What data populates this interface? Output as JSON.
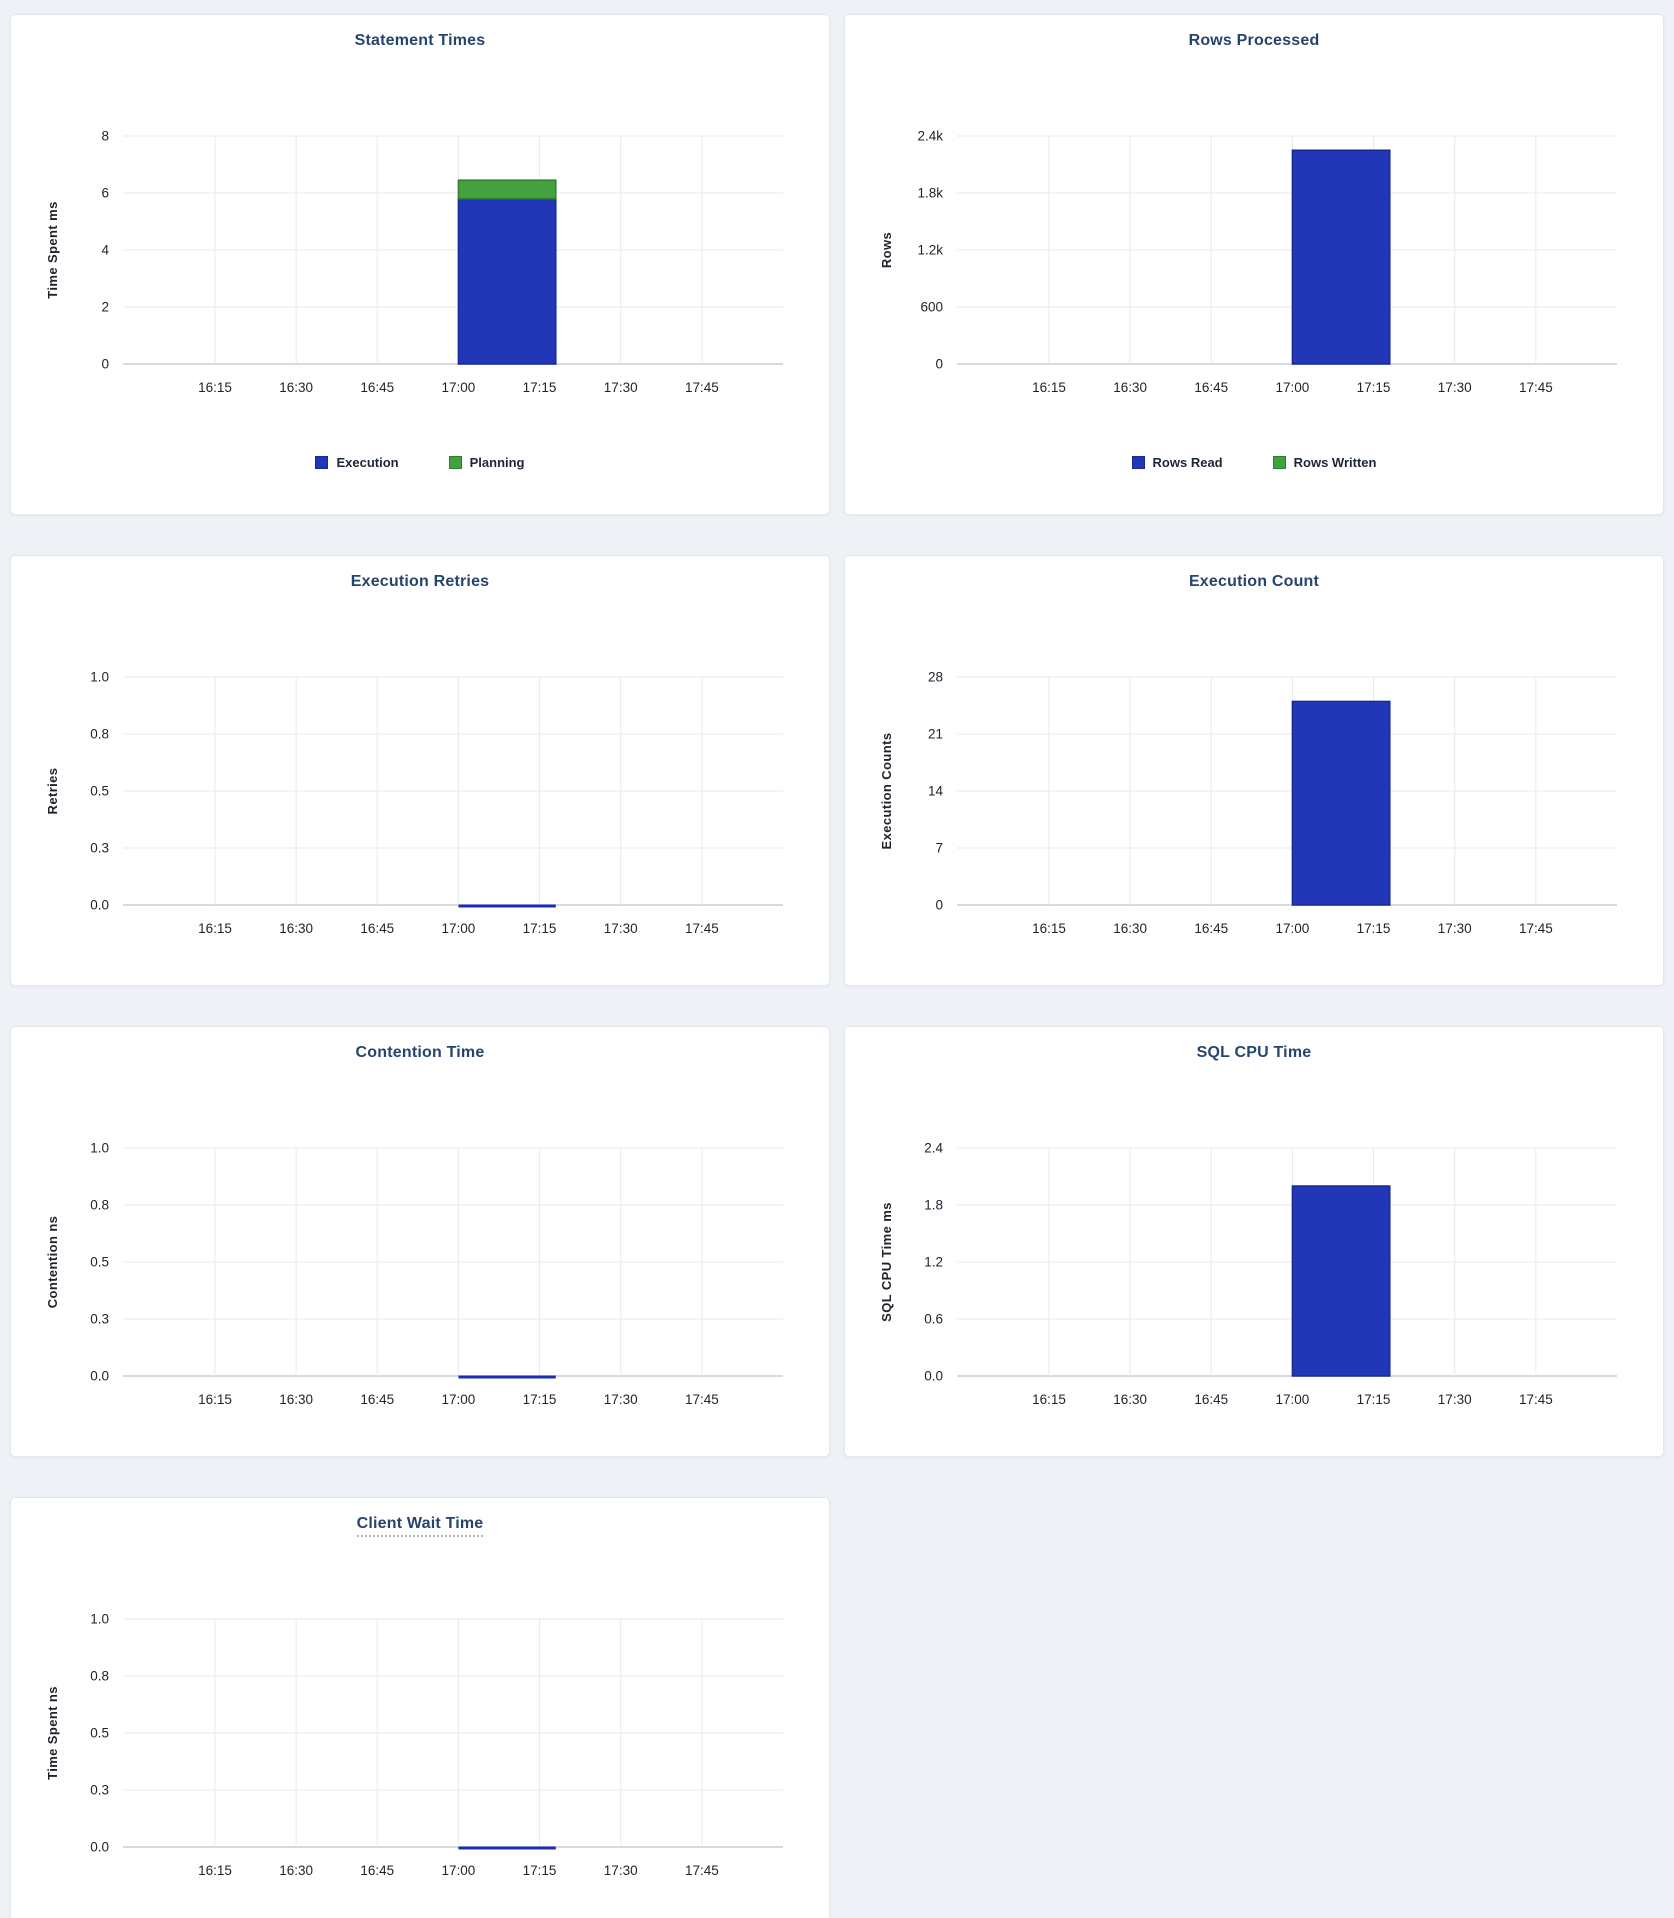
{
  "page": {
    "background": "#eef2f7"
  },
  "colors": {
    "bar_blue": "#2137b8",
    "bar_blue_stroke": "#172a96",
    "bar_green": "#43a13e",
    "bar_green_stroke": "#2e7d31",
    "title": "#26456e",
    "grid": "#e8eaed",
    "axis_line": "#c9ced4",
    "text": "#1d222b",
    "flat_line": "#1b2bb4"
  },
  "x_axis": {
    "tick_labels": [
      "16:15",
      "16:30",
      "16:45",
      "17:00",
      "17:15",
      "17:30",
      "17:45"
    ],
    "tick_minutes": [
      975,
      990,
      1005,
      1020,
      1035,
      1050,
      1065
    ],
    "domain_minutes": [
      958,
      1080
    ],
    "bar_minutes": [
      1020,
      1038
    ]
  },
  "chart_data": [
    {
      "type": "bar",
      "title": "Statement Times",
      "ylabel": "Time Spent ms",
      "y_tick_labels": [
        "0",
        "2",
        "4",
        "6",
        "8"
      ],
      "y_max": 8,
      "ylim": [
        0,
        8
      ],
      "x": [
        "17:00"
      ],
      "segments": [
        {
          "name": "Execution",
          "from": 0,
          "to": 5.8,
          "color": "blue"
        },
        {
          "name": "Planning",
          "from": 5.8,
          "to": 6.45,
          "color": "green"
        }
      ],
      "legend": [
        {
          "label": "Execution",
          "color": "blue"
        },
        {
          "label": "Planning",
          "color": "green"
        }
      ],
      "legend_position": "bottom",
      "grid": true
    },
    {
      "type": "bar",
      "title": "Rows Processed",
      "ylabel": "Rows",
      "y_tick_labels": [
        "0",
        "600",
        "1.2k",
        "1.8k",
        "2.4k"
      ],
      "y_max": 2400,
      "ylim": [
        0,
        2400
      ],
      "x": [
        "17:00"
      ],
      "segments": [
        {
          "name": "Rows Read",
          "from": 0,
          "to": 2250,
          "color": "blue"
        },
        {
          "name": "Rows Written",
          "from": 2250,
          "to": 2250,
          "color": "green"
        }
      ],
      "legend": [
        {
          "label": "Rows Read",
          "color": "blue"
        },
        {
          "label": "Rows Written",
          "color": "green"
        }
      ],
      "legend_position": "bottom",
      "grid": true
    },
    {
      "type": "bar",
      "title": "Execution Retries",
      "ylabel": "Retries",
      "y_tick_labels": [
        "0.0",
        "0.3",
        "0.5",
        "0.8",
        "1.0"
      ],
      "y_max": 1,
      "ylim": [
        0,
        1
      ],
      "x": [
        "17:00"
      ],
      "segments": [],
      "flat_line": {
        "name": "Retries",
        "value": 0
      },
      "grid": true
    },
    {
      "type": "bar",
      "title": "Execution Count",
      "ylabel": "Execution Counts",
      "y_tick_labels": [
        "0",
        "7",
        "14",
        "21",
        "28"
      ],
      "y_max": 28,
      "ylim": [
        0,
        28
      ],
      "x": [
        "17:00"
      ],
      "segments": [
        {
          "name": "Execution Count",
          "from": 0,
          "to": 25,
          "color": "blue"
        }
      ],
      "grid": true
    },
    {
      "type": "bar",
      "title": "Contention Time",
      "ylabel": "Contention ns",
      "y_tick_labels": [
        "0.0",
        "0.3",
        "0.5",
        "0.8",
        "1.0"
      ],
      "y_max": 1,
      "ylim": [
        0,
        1
      ],
      "x": [
        "17:00"
      ],
      "segments": [],
      "flat_line": {
        "name": "Contention",
        "value": 0
      },
      "grid": true
    },
    {
      "type": "bar",
      "title": "SQL CPU Time",
      "ylabel": "SQL CPU Time ms",
      "y_tick_labels": [
        "0.0",
        "0.6",
        "1.2",
        "1.8",
        "2.4"
      ],
      "y_max": 2.4,
      "ylim": [
        0,
        2.4
      ],
      "x": [
        "17:00"
      ],
      "segments": [
        {
          "name": "SQL CPU Time",
          "from": 0,
          "to": 2.0,
          "color": "blue"
        }
      ],
      "grid": true
    },
    {
      "type": "bar",
      "title": "Client Wait Time",
      "title_underlined": true,
      "ylabel": "Time Spent ns",
      "y_tick_labels": [
        "0.0",
        "0.3",
        "0.5",
        "0.8",
        "1.0"
      ],
      "y_max": 1,
      "ylim": [
        0,
        1
      ],
      "x": [
        "17:00"
      ],
      "segments": [],
      "flat_line": {
        "name": "Client Wait",
        "value": 0
      },
      "grid": true
    }
  ]
}
